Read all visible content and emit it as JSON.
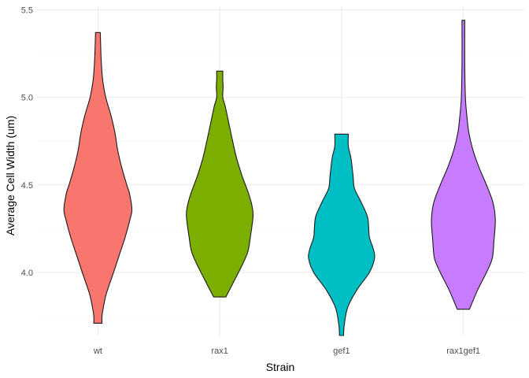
{
  "chart_data": {
    "type": "violin",
    "title": "",
    "xlabel": "Strain",
    "ylabel": "Average Cell Width (um)",
    "categories": [
      "wt",
      "rax1",
      "gef1",
      "rax1gef1"
    ],
    "ylim": [
      3.64,
      5.52
    ],
    "yticks": [
      4.0,
      4.5,
      5.0,
      5.5
    ],
    "ytick_labels": [
      "4.0",
      "4.5",
      "5.0",
      "5.5"
    ],
    "grid": true,
    "legend": "none",
    "series": [
      {
        "category": "wt",
        "color": "#F8766D",
        "min": 3.71,
        "max": 5.37,
        "density": [
          [
            3.71,
            0.12
          ],
          [
            3.75,
            0.12
          ],
          [
            3.8,
            0.16
          ],
          [
            3.88,
            0.25
          ],
          [
            4.0,
            0.46
          ],
          [
            4.1,
            0.63
          ],
          [
            4.2,
            0.8
          ],
          [
            4.3,
            0.94
          ],
          [
            4.36,
            1.0
          ],
          [
            4.45,
            0.93
          ],
          [
            4.5,
            0.85
          ],
          [
            4.6,
            0.7
          ],
          [
            4.7,
            0.58
          ],
          [
            4.8,
            0.5
          ],
          [
            4.9,
            0.38
          ],
          [
            5.0,
            0.23
          ],
          [
            5.1,
            0.14
          ],
          [
            5.2,
            0.1
          ],
          [
            5.3,
            0.08
          ],
          [
            5.37,
            0.07
          ]
        ]
      },
      {
        "category": "rax1",
        "color": "#7CAE00",
        "min": 3.86,
        "max": 5.15,
        "density": [
          [
            3.86,
            0.18
          ],
          [
            3.95,
            0.42
          ],
          [
            4.05,
            0.68
          ],
          [
            4.12,
            0.83
          ],
          [
            4.2,
            0.9
          ],
          [
            4.32,
            0.98
          ],
          [
            4.38,
            0.95
          ],
          [
            4.45,
            0.85
          ],
          [
            4.55,
            0.66
          ],
          [
            4.65,
            0.5
          ],
          [
            4.75,
            0.38
          ],
          [
            4.85,
            0.27
          ],
          [
            4.95,
            0.16
          ],
          [
            5.0,
            0.09
          ],
          [
            5.06,
            0.1
          ],
          [
            5.1,
            0.09
          ],
          [
            5.15,
            0.09
          ]
        ]
      },
      {
        "category": "gef1",
        "color": "#00BFC4",
        "min": 3.64,
        "max": 4.79,
        "density": [
          [
            3.64,
            0.06
          ],
          [
            3.7,
            0.08
          ],
          [
            3.8,
            0.18
          ],
          [
            3.9,
            0.45
          ],
          [
            4.0,
            0.82
          ],
          [
            4.08,
            0.97
          ],
          [
            4.13,
            0.94
          ],
          [
            4.2,
            0.82
          ],
          [
            4.25,
            0.8
          ],
          [
            4.32,
            0.76
          ],
          [
            4.4,
            0.58
          ],
          [
            4.48,
            0.38
          ],
          [
            4.55,
            0.34
          ],
          [
            4.65,
            0.28
          ],
          [
            4.72,
            0.2
          ],
          [
            4.79,
            0.2
          ]
        ]
      },
      {
        "category": "rax1gef1",
        "color": "#C77CFF",
        "min": 3.79,
        "max": 5.44,
        "density": [
          [
            3.79,
            0.18
          ],
          [
            3.9,
            0.42
          ],
          [
            4.0,
            0.68
          ],
          [
            4.08,
            0.85
          ],
          [
            4.18,
            0.9
          ],
          [
            4.3,
            0.94
          ],
          [
            4.4,
            0.87
          ],
          [
            4.5,
            0.68
          ],
          [
            4.6,
            0.46
          ],
          [
            4.7,
            0.28
          ],
          [
            4.8,
            0.16
          ],
          [
            4.9,
            0.1
          ],
          [
            5.0,
            0.06
          ],
          [
            5.2,
            0.04
          ],
          [
            5.44,
            0.04
          ]
        ]
      }
    ]
  }
}
